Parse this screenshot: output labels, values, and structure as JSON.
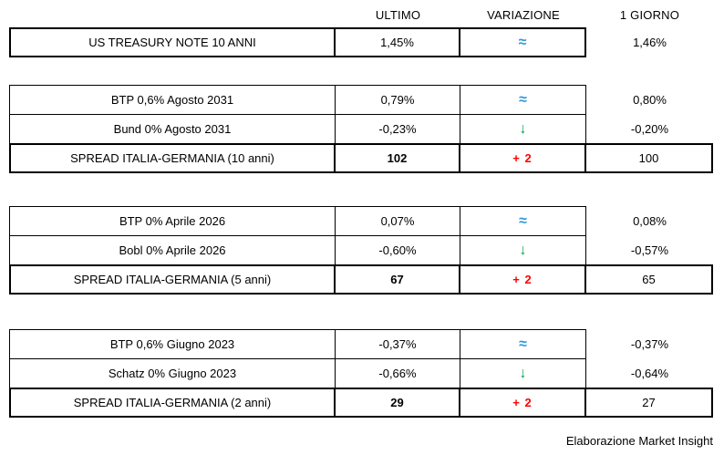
{
  "header": {
    "ultimo": "ULTIMO",
    "variazione": "VARIAZIONE",
    "giorno": "1 GIORNO"
  },
  "colors": {
    "approx": "#2e9ad5",
    "down": "#00a550",
    "spread-change": "#ff0000",
    "border": "#000000"
  },
  "blocks": [
    {
      "rows": [
        {
          "label": "US TREASURY NOTE 10 ANNI",
          "ultimo": "1,45%",
          "variazione": "≈",
          "giorno": "1,46%"
        }
      ]
    },
    {
      "rows": [
        {
          "label": "BTP 0,6% Agosto 2031",
          "ultimo": "0,79%",
          "variazione": "≈",
          "giorno": "0,80%"
        },
        {
          "label": "Bund 0% Agosto 2031",
          "ultimo": "-0,23%",
          "variazione": "↓",
          "giorno": "-0,20%"
        },
        {
          "label": "SPREAD ITALIA-GERMANIA (10 anni)",
          "ultimo": "102",
          "variazione": "+ 2",
          "giorno": "100"
        }
      ]
    },
    {
      "rows": [
        {
          "label": "BTP 0% Aprile 2026",
          "ultimo": "0,07%",
          "variazione": "≈",
          "giorno": "0,08%"
        },
        {
          "label": "Bobl 0% Aprile 2026",
          "ultimo": "-0,60%",
          "variazione": "↓",
          "giorno": "-0,57%"
        },
        {
          "label": "SPREAD ITALIA-GERMANIA (5 anni)",
          "ultimo": "67",
          "variazione": "+ 2",
          "giorno": "65"
        }
      ]
    },
    {
      "rows": [
        {
          "label": "BTP 0,6% Giugno 2023",
          "ultimo": "-0,37%",
          "variazione": "≈",
          "giorno": "-0,37%"
        },
        {
          "label": "Schatz 0% Giugno 2023",
          "ultimo": "-0,66%",
          "variazione": "↓",
          "giorno": "-0,64%"
        },
        {
          "label": "SPREAD ITALIA-GERMANIA (2 anni)",
          "ultimo": "29",
          "variazione": "+ 2",
          "giorno": "27"
        }
      ]
    }
  ],
  "footer": "Elaborazione Market Insight",
  "chart_data": {
    "type": "table",
    "columns": [
      "",
      "ULTIMO",
      "VARIAZIONE",
      "1 GIORNO"
    ],
    "rows": [
      [
        "US TREASURY NOTE 10 ANNI",
        "1,45%",
        "≈",
        "1,46%"
      ],
      [
        "BTP 0,6% Agosto 2031",
        "0,79%",
        "≈",
        "0,80%"
      ],
      [
        "Bund 0% Agosto 2031",
        "-0,23%",
        "↓",
        "-0,20%"
      ],
      [
        "SPREAD ITALIA-GERMANIA (10 anni)",
        "102",
        "+ 2",
        "100"
      ],
      [
        "BTP 0% Aprile 2026",
        "0,07%",
        "≈",
        "0,08%"
      ],
      [
        "Bobl 0% Aprile 2026",
        "-0,60%",
        "↓",
        "-0,57%"
      ],
      [
        "SPREAD ITALIA-GERMANIA (5 anni)",
        "67",
        "+ 2",
        "65"
      ],
      [
        "BTP 0,6% Giugno 2023",
        "-0,37%",
        "≈",
        "-0,37%"
      ],
      [
        "Schatz 0% Giugno 2023",
        "-0,66%",
        "↓",
        "-0,64%"
      ],
      [
        "SPREAD ITALIA-GERMANIA (2 anni)",
        "29",
        "+ 2",
        "27"
      ]
    ],
    "source_note": "Elaborazione Market Insight"
  }
}
